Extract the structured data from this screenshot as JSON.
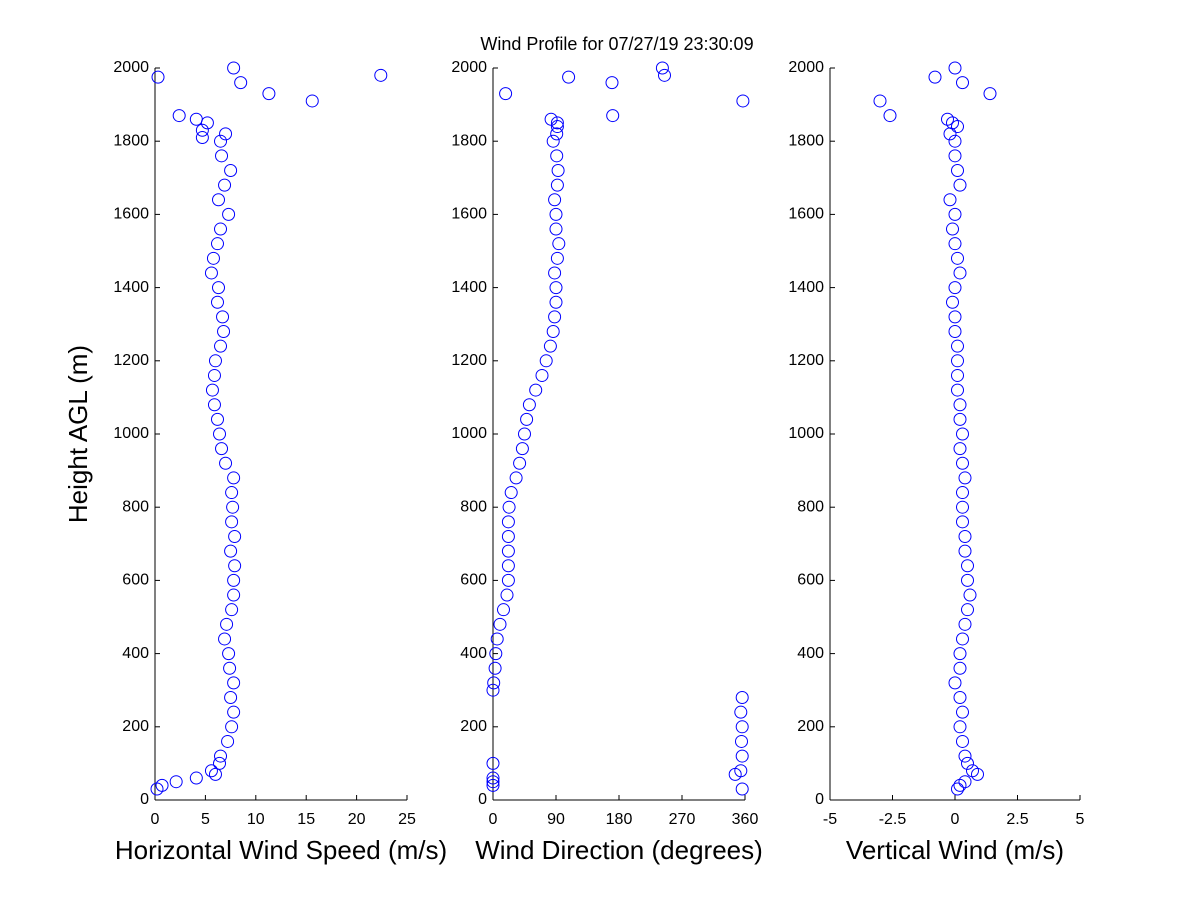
{
  "chart_data": [
    {
      "type": "scatter",
      "title": "Wind Profile for  07/27/19 23:30:09",
      "xlabel": "Horizontal Wind Speed (m/s)",
      "ylabel": "Height AGL (m)",
      "color": "#0000ff",
      "xlim": [
        0,
        25
      ],
      "xticks": [
        0,
        5,
        10,
        15,
        20,
        25
      ],
      "ylim": [
        0,
        2000
      ],
      "yticks": [
        0,
        200,
        400,
        600,
        800,
        1000,
        1200,
        1400,
        1600,
        1800,
        2000
      ],
      "x": [
        0.2,
        0.7,
        2.1,
        4.1,
        6.0,
        5.6,
        6.4,
        6.5,
        7.2,
        7.6,
        7.8,
        7.5,
        7.8,
        7.4,
        7.3,
        6.9,
        7.1,
        7.6,
        7.8,
        7.8,
        7.9,
        7.5,
        7.9,
        7.6,
        7.7,
        7.6,
        7.8,
        7.0,
        6.6,
        6.4,
        6.2,
        5.9,
        5.7,
        5.9,
        6.0,
        6.5,
        6.8,
        6.7,
        6.2,
        6.3,
        5.6,
        5.8,
        6.2,
        6.5,
        7.3,
        6.3,
        6.9,
        7.5,
        6.6,
        6.5,
        7.0,
        4.7,
        4.7,
        5.2,
        4.1,
        2.4,
        15.6,
        11.3,
        8.5,
        0.3,
        22.4,
        7.8
      ],
      "y": [
        30,
        40,
        50,
        60,
        70,
        80,
        100,
        120,
        160,
        200,
        240,
        280,
        320,
        360,
        400,
        440,
        480,
        520,
        560,
        600,
        640,
        680,
        720,
        760,
        800,
        840,
        880,
        920,
        960,
        1000,
        1040,
        1080,
        1120,
        1160,
        1200,
        1240,
        1280,
        1320,
        1360,
        1400,
        1440,
        1480,
        1520,
        1560,
        1600,
        1640,
        1680,
        1720,
        1760,
        1800,
        1820,
        1810,
        1830,
        1850,
        1860,
        1870,
        1910,
        1930,
        1960,
        1975,
        1980,
        2000
      ]
    },
    {
      "type": "scatter",
      "xlabel": "Wind Direction (degrees)",
      "color": "#0000ff",
      "xlim": [
        0,
        360
      ],
      "xticks": [
        0,
        90,
        180,
        270,
        360
      ],
      "ylim": [
        0,
        2000
      ],
      "yticks": [
        0,
        200,
        400,
        600,
        800,
        1000,
        1200,
        1400,
        1600,
        1800,
        2000
      ],
      "x": [
        356,
        0,
        0,
        0,
        346,
        354,
        0,
        356,
        355,
        356,
        354,
        356,
        0,
        1,
        3,
        4,
        6,
        10,
        15,
        20,
        22,
        22,
        22,
        22,
        22,
        23,
        26,
        33,
        38,
        42,
        45,
        48,
        52,
        61,
        70,
        76,
        82,
        86,
        88,
        90,
        90,
        88,
        92,
        94,
        90,
        90,
        88,
        92,
        93,
        91,
        86,
        91,
        92,
        92,
        83,
        171,
        357,
        18,
        170,
        108,
        245,
        242
      ],
      "y": [
        30,
        40,
        50,
        60,
        70,
        80,
        100,
        120,
        160,
        200,
        240,
        280,
        300,
        320,
        360,
        400,
        440,
        480,
        520,
        560,
        600,
        640,
        680,
        720,
        760,
        800,
        840,
        880,
        920,
        960,
        1000,
        1040,
        1080,
        1120,
        1160,
        1200,
        1240,
        1280,
        1320,
        1360,
        1400,
        1440,
        1480,
        1520,
        1560,
        1600,
        1640,
        1680,
        1720,
        1760,
        1800,
        1820,
        1840,
        1850,
        1860,
        1870,
        1910,
        1930,
        1960,
        1975,
        1980,
        2000
      ]
    },
    {
      "type": "scatter",
      "xlabel": "Vertical Wind (m/s)",
      "color": "#0000ff",
      "xlim": [
        -5,
        5
      ],
      "xticks": [
        -5,
        -2.5,
        0,
        2.5,
        5
      ],
      "ylim": [
        0,
        2000
      ],
      "yticks": [
        0,
        200,
        400,
        600,
        800,
        1000,
        1200,
        1400,
        1600,
        1800,
        2000
      ],
      "x": [
        0.1,
        0.2,
        0.4,
        0.9,
        0.7,
        0.5,
        0.4,
        0.3,
        0.2,
        0.3,
        0.2,
        0,
        0.2,
        0.2,
        0.3,
        0.4,
        0.5,
        0.6,
        0.5,
        0.5,
        0.4,
        0.4,
        0.3,
        0.3,
        0.3,
        0.4,
        0.3,
        0.2,
        0.3,
        0.2,
        0.2,
        0.1,
        0.1,
        0.1,
        0.1,
        0,
        0,
        -0.1,
        0,
        0.2,
        0.1,
        0,
        -0.1,
        0,
        -0.2,
        0.2,
        0.1,
        0,
        0,
        -0.2,
        0.1,
        -0.1,
        -0.3,
        -2.6,
        -3.0,
        1.4,
        0.3,
        -0.8,
        0
      ],
      "y": [
        30,
        40,
        50,
        70,
        80,
        100,
        120,
        160,
        200,
        240,
        280,
        320,
        360,
        400,
        440,
        480,
        520,
        560,
        600,
        640,
        680,
        720,
        760,
        800,
        840,
        880,
        920,
        960,
        1000,
        1040,
        1080,
        1120,
        1160,
        1200,
        1240,
        1280,
        1320,
        1360,
        1400,
        1440,
        1480,
        1520,
        1560,
        1600,
        1640,
        1680,
        1720,
        1760,
        1800,
        1820,
        1840,
        1850,
        1860,
        1870,
        1910,
        1930,
        1960,
        1975,
        2000
      ]
    }
  ]
}
